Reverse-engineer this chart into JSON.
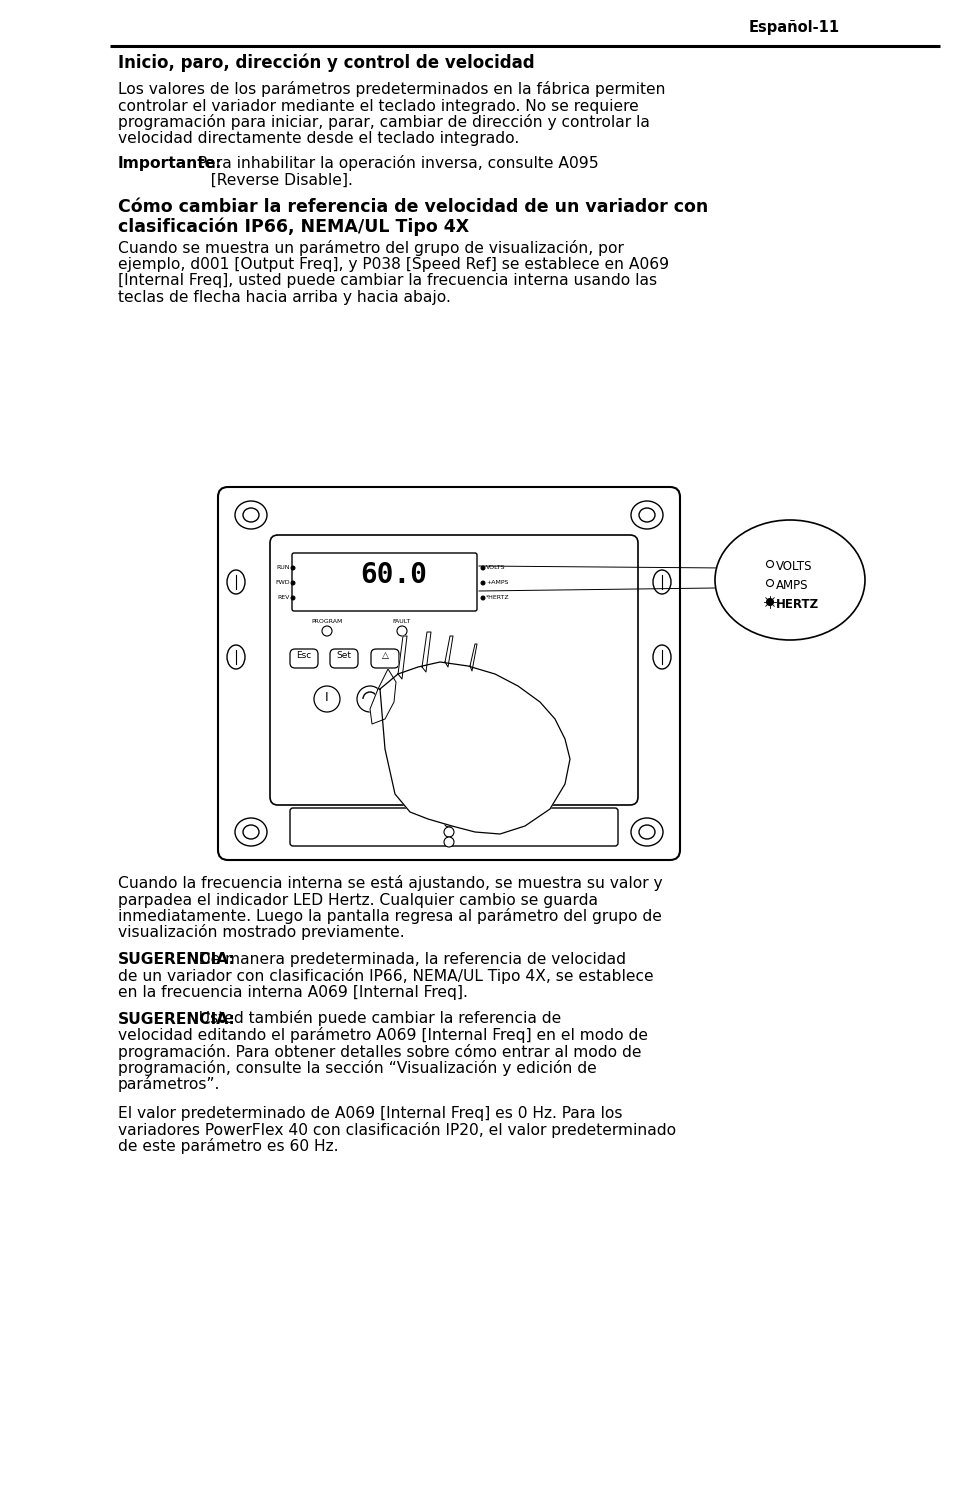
{
  "page_header_right": "Español-11",
  "section1_title": "Inicio, paro, dirección y control de velocidad",
  "para1_lines": [
    "Los valores de los parámetros predeterminados en la fábrica permiten",
    "controlar el variador mediante el teclado integrado. No se requiere",
    "programación para iniciar, parar, cambiar de dirección y controlar la",
    "velocidad directamente desde el teclado integrado."
  ],
  "important_bold": "Importante:",
  "important_rest1": " Para inhabilitar la operación inversa, consulte A095",
  "important_line2": "                   [Reverse Disable].",
  "section2_title_line1": "Cómo cambiar la referencia de velocidad de un variador con",
  "section2_title_line2": "clasificación IP66, NEMA/UL Tipo 4X",
  "para2_lines": [
    "Cuando se muestra un parámetro del grupo de visualización, por",
    "ejemplo, d001 [Output Freq], y P038 [Speed Ref] se establece en A069",
    "[Internal Freq], usted puede cambiar la frecuencia interna usando las",
    "teclas de flecha hacia arriba y hacia abajo."
  ],
  "para3_lines": [
    "Cuando la frecuencia interna se está ajustando, se muestra su valor y",
    "parpadea el indicador LED Hertz. Cualquier cambio se guarda",
    "inmediatamente. Luego la pantalla regresa al parámetro del grupo de",
    "visualización mostrado previamente."
  ],
  "sug1_bold": "SUGERENCIA:",
  "sug1_rest1": "  De manera predeterminada, la referencia de velocidad",
  "sug1_lines": [
    "de un variador con clasificación IP66, NEMA/UL Tipo 4X, se establece",
    "en la frecuencia interna A069 [Internal Freq]."
  ],
  "sug2_bold": "SUGERENCIA:",
  "sug2_rest1": "  Usted también puede cambiar la referencia de",
  "sug2_lines": [
    "velocidad editando el parámetro A069 [Internal Freq] en el modo de",
    "programación. Para obtener detalles sobre cómo entrar al modo de",
    "programación, consulte la sección “Visualización y edición de",
    "parámetros”."
  ],
  "para4_lines": [
    "El valor predeterminado de A069 [Internal Freq] es 0 Hz. Para los",
    "variadores PowerFlex 40 con clasificación IP20, el valor predeterminado",
    "de este parámetro es 60 Hz."
  ],
  "bg_color": "#ffffff",
  "text_color": "#000000"
}
